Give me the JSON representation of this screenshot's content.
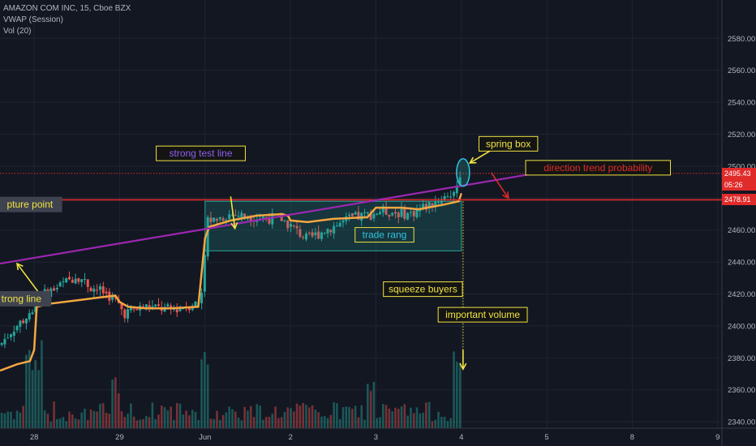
{
  "legend": {
    "symbol": "AMAZON COM INC, 15, Cboe BZX",
    "vwap": "VWAP (Session)",
    "vol": "Vol (20)"
  },
  "price_tags": {
    "last": "2495.43",
    "countdown": "05:26",
    "level": "2478.91"
  },
  "colors": {
    "background": "#131722",
    "up": "#26a69a",
    "down": "#ef5350",
    "vwap": "#f5a742",
    "trendline": "#9c27b0",
    "level": "#e02b2b",
    "box": "#26a69a",
    "annotation_yellow": "#f0e442"
  },
  "chart_data": {
    "type": "candlestick",
    "title": "AMAZON COM INC, 15, Cboe BZX",
    "y_axis_ticks": [
      2340,
      2360,
      2380,
      2400,
      2420,
      2440,
      2460,
      2480,
      2500,
      2520,
      2540,
      2560,
      2580
    ],
    "y_axis_labels": [
      "2340.00",
      "2360.00",
      "2380.00",
      "2400.00",
      "2420.00",
      "2440.00",
      "2460.00",
      "2480.00",
      "2500.00",
      "2520.00",
      "2540.00",
      "2560.00",
      "2580.00"
    ],
    "ylim": [
      2336,
      2604
    ],
    "x_axis_labels": [
      "28",
      "29",
      "Jun",
      "2",
      "3",
      "4",
      "5",
      "8",
      "9"
    ],
    "x_tick_positions": [
      28,
      29,
      30,
      31,
      32,
      33,
      34,
      35,
      36
    ],
    "xlim": [
      27.6,
      36.05
    ],
    "indicators": [
      "VWAP (Session)",
      "Vol (20)"
    ],
    "vwap": [
      [
        27.6,
        2372
      ],
      [
        27.8,
        2376
      ],
      [
        27.95,
        2378
      ],
      [
        28.0,
        2385
      ],
      [
        28.03,
        2412
      ],
      [
        28.2,
        2414
      ],
      [
        28.5,
        2416
      ],
      [
        28.8,
        2418
      ],
      [
        28.95,
        2419
      ],
      [
        29.0,
        2415
      ],
      [
        29.1,
        2412
      ],
      [
        29.3,
        2411
      ],
      [
        29.6,
        2411
      ],
      [
        29.92,
        2412
      ],
      [
        30.0,
        2455
      ],
      [
        30.05,
        2462
      ],
      [
        30.3,
        2466
      ],
      [
        30.6,
        2469
      ],
      [
        30.9,
        2470
      ],
      [
        30.97,
        2469
      ],
      [
        31.0,
        2466
      ],
      [
        31.2,
        2465
      ],
      [
        31.5,
        2467
      ],
      [
        31.9,
        2468
      ],
      [
        32.0,
        2474
      ],
      [
        32.3,
        2474
      ],
      [
        32.5,
        2473
      ],
      [
        32.8,
        2476
      ],
      [
        32.97,
        2478
      ],
      [
        33.0,
        2483
      ]
    ],
    "horizontal_levels": [
      {
        "price": 2478.91,
        "style": "solid",
        "color": "#e02b2b"
      },
      {
        "price": 2495.43,
        "style": "dotted",
        "color": "#e02b2b"
      }
    ],
    "trend_line": {
      "from": [
        27.6,
        2439
      ],
      "to": [
        34.7,
        2503
      ]
    },
    "range_box": {
      "x": [
        30.0,
        33.0
      ],
      "y": [
        2447,
        2478
      ]
    },
    "annotations": [
      {
        "text": "spring box",
        "x": 33.55,
        "y": 2514
      },
      {
        "text": "direction trend probability",
        "x": 34.6,
        "y": 2499
      },
      {
        "text": "strong test line",
        "x": 29.95,
        "y": 2508
      },
      {
        "text": "pture point",
        "x": 27.95,
        "y": 2476
      },
      {
        "text": "trade rang",
        "x": 32.1,
        "y": 2457
      },
      {
        "text": "trong line",
        "x": 27.85,
        "y": 2417
      },
      {
        "text": "squeeze buyers",
        "x": 32.55,
        "y": 2423
      },
      {
        "text": "important volume",
        "x": 33.25,
        "y": 2407
      }
    ]
  }
}
